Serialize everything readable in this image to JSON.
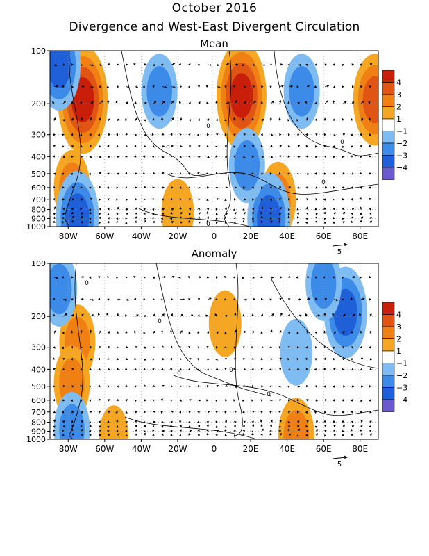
{
  "header": {
    "title": "October 2016",
    "subtitle": "Divergence and West-East Divergent Circulation"
  },
  "reference_vector_label": "5",
  "colors": {
    "levels": [
      "#6a5acd",
      "#1f5fd8",
      "#3d8be8",
      "#7fbcf2",
      "#ffffff",
      "#f5a623",
      "#f07f14",
      "#e05514",
      "#c81e0a"
    ],
    "contour": "#000000",
    "grid": "#999999"
  },
  "chart_data": [
    {
      "type": "heatmap",
      "title": "Mean",
      "x_ticks": [
        "80W",
        "60W",
        "40W",
        "20W",
        "0",
        "20E",
        "40E",
        "60E",
        "80E"
      ],
      "x_tick_values": [
        -80,
        -60,
        -40,
        -20,
        0,
        20,
        40,
        60,
        80
      ],
      "xlim": [
        -90,
        90
      ],
      "y_ticks": [
        "100",
        "200",
        "300",
        "400",
        "500",
        "600",
        "700",
        "800",
        "900",
        "1000"
      ],
      "y_tick_values": [
        100,
        200,
        300,
        400,
        500,
        600,
        700,
        800,
        900,
        1000
      ],
      "ylim": [
        1000,
        100
      ],
      "y_scale": "log",
      "colorbar": {
        "labels": [
          "4",
          "3",
          "2",
          "1",
          "−1",
          "−2",
          "−3",
          "−4"
        ]
      },
      "contour_labels": [
        "0",
        "0",
        "0",
        "0",
        "0"
      ],
      "features": [
        {
          "lon": -72,
          "p": 190,
          "value": 4
        },
        {
          "lon": 15,
          "p": 180,
          "value": 4
        },
        {
          "lon": 88,
          "p": 190,
          "value": 3
        },
        {
          "lon": -78,
          "p": 600,
          "value": 2
        },
        {
          "lon": -20,
          "p": 830,
          "value": 1.5
        },
        {
          "lon": 35,
          "p": 700,
          "value": 2
        },
        {
          "lon": -30,
          "p": 170,
          "value": -2
        },
        {
          "lon": 48,
          "p": 170,
          "value": -2
        },
        {
          "lon": -85,
          "p": 120,
          "value": -3
        },
        {
          "lon": -75,
          "p": 880,
          "value": -3
        },
        {
          "lon": 30,
          "p": 900,
          "value": -3
        },
        {
          "lon": 18,
          "p": 450,
          "value": -2
        }
      ]
    },
    {
      "type": "heatmap",
      "title": "Anomaly",
      "x_ticks": [
        "80W",
        "60W",
        "40W",
        "20W",
        "0",
        "20E",
        "40E",
        "60E",
        "80E"
      ],
      "x_tick_values": [
        -80,
        -60,
        -40,
        -20,
        0,
        20,
        40,
        60,
        80
      ],
      "xlim": [
        -90,
        90
      ],
      "y_ticks": [
        "100",
        "200",
        "300",
        "400",
        "500",
        "600",
        "700",
        "800",
        "900",
        "1000"
      ],
      "y_tick_values": [
        100,
        200,
        300,
        400,
        500,
        600,
        700,
        800,
        900,
        1000
      ],
      "ylim": [
        1000,
        100
      ],
      "y_scale": "log",
      "colorbar": {
        "labels": [
          "4",
          "3",
          "2",
          "1",
          "−1",
          "−2",
          "−3",
          "−4"
        ]
      },
      "contour_labels": [
        "0",
        "0",
        "0",
        "0",
        "0"
      ],
      "features": [
        {
          "lon": -75,
          "p": 280,
          "value": 2
        },
        {
          "lon": -78,
          "p": 480,
          "value": 2
        },
        {
          "lon": 6,
          "p": 220,
          "value": 1.5
        },
        {
          "lon": 45,
          "p": 950,
          "value": 2
        },
        {
          "lon": -55,
          "p": 940,
          "value": 1
        },
        {
          "lon": 72,
          "p": 190,
          "value": -3
        },
        {
          "lon": 60,
          "p": 130,
          "value": -2
        },
        {
          "lon": -85,
          "p": 140,
          "value": -2
        },
        {
          "lon": 45,
          "p": 320,
          "value": -1.5
        },
        {
          "lon": -78,
          "p": 880,
          "value": -2
        }
      ]
    }
  ]
}
